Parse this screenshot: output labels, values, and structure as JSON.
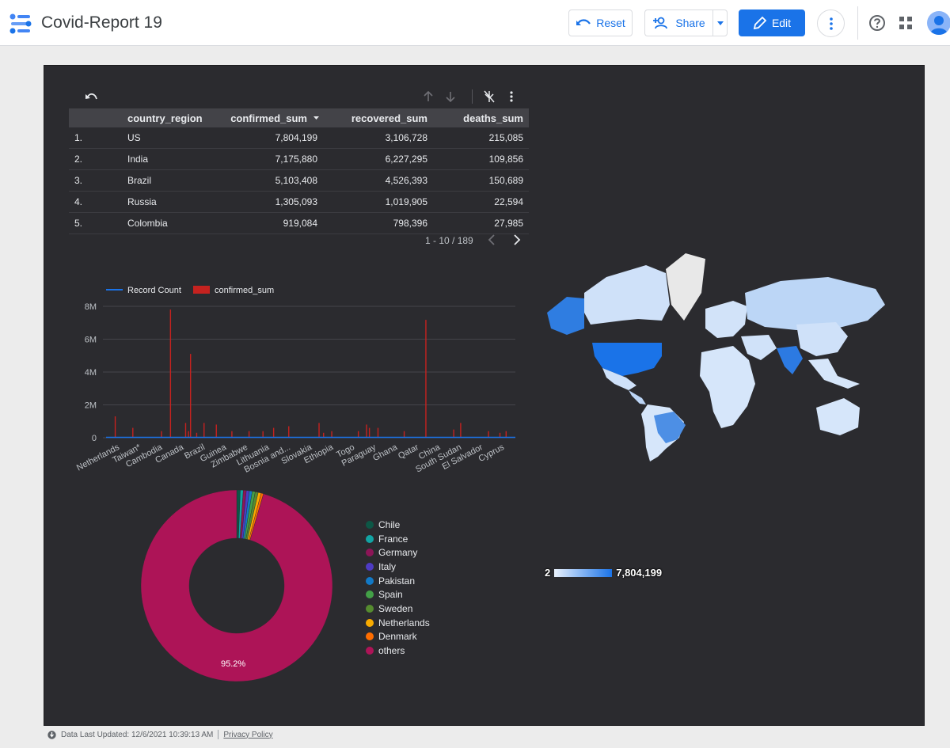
{
  "app": {
    "title": "Covid-Report 19"
  },
  "toolbar": {
    "reset_label": "Reset",
    "share_label": "Share",
    "edit_label": "Edit"
  },
  "table": {
    "headers": [
      "country_region",
      "confirmed_sum",
      "recovered_sum",
      "deaths_sum"
    ],
    "rows": [
      {
        "idx": "1.",
        "country": "US",
        "confirmed": "7,804,199",
        "recovered": "3,106,728",
        "deaths": "215,085"
      },
      {
        "idx": "2.",
        "country": "India",
        "confirmed": "7,175,880",
        "recovered": "6,227,295",
        "deaths": "109,856"
      },
      {
        "idx": "3.",
        "country": "Brazil",
        "confirmed": "5,103,408",
        "recovered": "4,526,393",
        "deaths": "150,689"
      },
      {
        "idx": "4.",
        "country": "Russia",
        "confirmed": "1,305,093",
        "recovered": "1,019,905",
        "deaths": "22,594"
      },
      {
        "idx": "5.",
        "country": "Colombia",
        "confirmed": "919,084",
        "recovered": "798,396",
        "deaths": "27,985"
      }
    ],
    "pagination": "1 - 10 / 189"
  },
  "chart_data": [
    {
      "type": "bar",
      "series": [
        {
          "name": "Record Count",
          "color": "#1a73e8"
        },
        {
          "name": "confirmed_sum",
          "color": "#c5221f"
        }
      ],
      "categories": [
        "Netherlands",
        "Taiwan*",
        "Cambodia",
        "Canada",
        "Brazil",
        "Guinea",
        "Zimbabwe",
        "Lithuania",
        "Bosnia and...",
        "Slovakia",
        "Ethiopia",
        "Togo",
        "Paraguay",
        "Ghana",
        "Qatar",
        "China",
        "South Sudan",
        "El Salvador",
        "Cyprus"
      ],
      "ytick_labels": [
        "0",
        "2M",
        "4M",
        "6M",
        "8M"
      ],
      "ylim": [
        0,
        8000000
      ],
      "bars": [
        [
          0.021,
          1300000
        ],
        [
          0.064,
          600000
        ],
        [
          0.134,
          400000
        ],
        [
          0.156,
          7804199
        ],
        [
          0.193,
          900000
        ],
        [
          0.2,
          400000
        ],
        [
          0.205,
          5103408
        ],
        [
          0.22,
          300000
        ],
        [
          0.238,
          900000
        ],
        [
          0.268,
          800000
        ],
        [
          0.306,
          400000
        ],
        [
          0.348,
          400000
        ],
        [
          0.382,
          400000
        ],
        [
          0.408,
          600000
        ],
        [
          0.445,
          700000
        ],
        [
          0.519,
          900000
        ],
        [
          0.53,
          300000
        ],
        [
          0.55,
          400000
        ],
        [
          0.615,
          400000
        ],
        [
          0.635,
          800000
        ],
        [
          0.642,
          600000
        ],
        [
          0.663,
          600000
        ],
        [
          0.727,
          400000
        ],
        [
          0.78,
          7175880
        ],
        [
          0.848,
          500000
        ],
        [
          0.865,
          900000
        ],
        [
          0.933,
          400000
        ],
        [
          0.961,
          300000
        ],
        [
          0.976,
          400000
        ]
      ]
    },
    {
      "type": "pie",
      "donut": true,
      "slices": [
        {
          "label": "Chile",
          "value": 0.6,
          "color": "#0d5746"
        },
        {
          "label": "France",
          "value": 0.5,
          "color": "#12a4a4"
        },
        {
          "label": "Germany",
          "value": 0.5,
          "color": "#8c1557"
        },
        {
          "label": "Italy",
          "value": 0.5,
          "color": "#4e3bc4"
        },
        {
          "label": "Pakistan",
          "value": 0.5,
          "color": "#1279c6"
        },
        {
          "label": "Spain",
          "value": 0.5,
          "color": "#43a047"
        },
        {
          "label": "Sweden",
          "value": 0.5,
          "color": "#558b2f"
        },
        {
          "label": "Netherlands",
          "value": 0.5,
          "color": "#f9ab00"
        },
        {
          "label": "Denmark",
          "value": 0.4,
          "color": "#ff6d00"
        },
        {
          "label": "others",
          "value": 95.2,
          "color": "#ad1457"
        }
      ],
      "center_label": "95.2%"
    }
  ],
  "map": {
    "scale_min": "2",
    "scale_max": "7,804,199"
  },
  "footer": {
    "updated": "Data Last Updated: 12/6/2021 10:39:13 AM",
    "privacy": "Privacy Policy"
  }
}
